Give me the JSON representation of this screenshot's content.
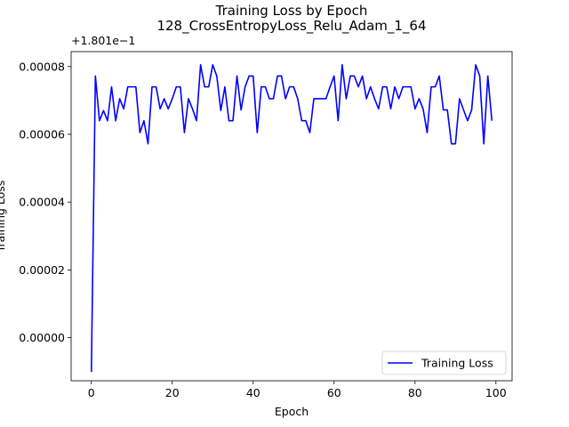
{
  "chart_data": {
    "type": "line",
    "title": "Training Loss by Epoch",
    "subtitle": "128_CrossEntropyLoss_Relu_Adam_1_64",
    "xlabel": "Epoch",
    "ylabel": "Training Loss",
    "y_offset_label": "+1.801e−1",
    "xlim": [
      -5,
      104
    ],
    "ylim": [
      -1.27e-05,
      8.44e-05
    ],
    "xticks": [
      0,
      20,
      40,
      60,
      80,
      100
    ],
    "xtick_labels": [
      "0",
      "20",
      "40",
      "60",
      "80",
      "100"
    ],
    "yticks": [
      0.0,
      2e-05,
      4e-05,
      6e-05,
      8e-05
    ],
    "ytick_labels": [
      "0.00000",
      "0.00002",
      "0.00004",
      "0.00006",
      "0.00008"
    ],
    "grid": false,
    "legend_position": "lower-right",
    "series": [
      {
        "name": "Training Loss",
        "color": "#0000ff",
        "x": [
          0,
          1,
          2,
          3,
          4,
          5,
          6,
          7,
          8,
          9,
          10,
          11,
          12,
          13,
          14,
          15,
          16,
          17,
          18,
          19,
          20,
          21,
          22,
          23,
          24,
          25,
          26,
          27,
          28,
          29,
          30,
          31,
          32,
          33,
          34,
          35,
          36,
          37,
          38,
          39,
          40,
          41,
          42,
          43,
          44,
          45,
          46,
          47,
          48,
          49,
          50,
          51,
          52,
          53,
          54,
          55,
          56,
          57,
          58,
          59,
          60,
          61,
          62,
          63,
          64,
          65,
          66,
          67,
          68,
          69,
          70,
          71,
          72,
          73,
          74,
          75,
          76,
          77,
          78,
          79,
          80,
          81,
          82,
          83,
          84,
          85,
          86,
          87,
          88,
          89,
          90,
          91,
          92,
          93,
          94,
          95,
          96,
          97,
          98,
          99
        ],
        "y": [
          -1.01e-05,
          7.72e-05,
          6.4e-05,
          6.7e-05,
          6.4e-05,
          7.4e-05,
          6.4e-05,
          7.05e-05,
          6.75e-05,
          7.4e-05,
          7.4e-05,
          7.4e-05,
          6.05e-05,
          6.4e-05,
          5.72e-05,
          7.4e-05,
          7.4e-05,
          6.75e-05,
          7.05e-05,
          6.75e-05,
          7.05e-05,
          7.4e-05,
          7.4e-05,
          6.05e-05,
          7.05e-05,
          6.75e-05,
          6.4e-05,
          8.05e-05,
          7.4e-05,
          7.4e-05,
          8.05e-05,
          7.72e-05,
          6.7e-05,
          7.4e-05,
          6.4e-05,
          6.4e-05,
          7.72e-05,
          6.72e-05,
          7.4e-05,
          7.72e-05,
          7.72e-05,
          6.05e-05,
          7.4e-05,
          7.4e-05,
          7.05e-05,
          7.05e-05,
          7.72e-05,
          7.72e-05,
          7.05e-05,
          7.4e-05,
          7.4e-05,
          7.05e-05,
          6.4e-05,
          6.4e-05,
          6.05e-05,
          7.05e-05,
          7.05e-05,
          7.05e-05,
          7.05e-05,
          7.4e-05,
          7.72e-05,
          6.4e-05,
          8.05e-05,
          7.05e-05,
          7.72e-05,
          7.72e-05,
          7.4e-05,
          7.72e-05,
          7.05e-05,
          7.4e-05,
          7.05e-05,
          6.75e-05,
          7.4e-05,
          7.4e-05,
          6.75e-05,
          7.4e-05,
          7.05e-05,
          7.4e-05,
          7.4e-05,
          7.4e-05,
          6.75e-05,
          7.05e-05,
          6.75e-05,
          6.05e-05,
          7.4e-05,
          7.4e-05,
          7.72e-05,
          6.72e-05,
          6.72e-05,
          5.72e-05,
          5.72e-05,
          7.05e-05,
          6.72e-05,
          6.4e-05,
          6.72e-05,
          8.05e-05,
          7.72e-05,
          5.72e-05,
          7.72e-05,
          6.4e-05
        ]
      }
    ]
  }
}
